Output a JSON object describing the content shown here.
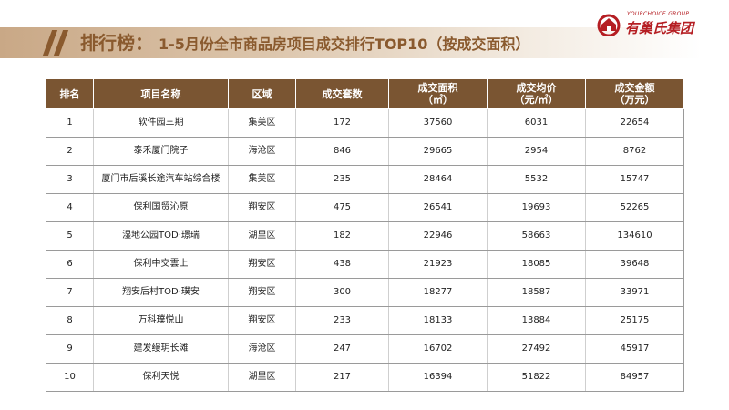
{
  "header": {
    "title": "排行榜：",
    "subtitle": "1-5月份全市商品房项目成交排行TOP10（按成交面积）"
  },
  "logo": {
    "en_text": "YOURCHOICE GROUP",
    "cn_text": "有巢氏集团",
    "brand_color": "#b51e23"
  },
  "colors": {
    "accent": "#8a5a2e",
    "header_fill": "#7a5532"
  },
  "table": {
    "columns": [
      {
        "line1": "排名",
        "line2": ""
      },
      {
        "line1": "项目名称",
        "line2": ""
      },
      {
        "line1": "区域",
        "line2": ""
      },
      {
        "line1": "成交套数",
        "line2": ""
      },
      {
        "line1": "成交面积",
        "line2": "（㎡）"
      },
      {
        "line1": "成交均价",
        "line2": "（元/㎡）"
      },
      {
        "line1": "成交金额",
        "line2": "（万元）"
      }
    ],
    "rows": [
      [
        "1",
        "软件园三期",
        "集美区",
        "172",
        "37560",
        "6031",
        "22654"
      ],
      [
        "2",
        "泰禾厦门院子",
        "海沧区",
        "846",
        "29665",
        "2954",
        "8762"
      ],
      [
        "3",
        "厦门市后溪长途汽车站综合楼",
        "集美区",
        "235",
        "28464",
        "5532",
        "15747"
      ],
      [
        "4",
        "保利国贸沁原",
        "翔安区",
        "475",
        "26541",
        "19693",
        "52265"
      ],
      [
        "5",
        "湿地公园TOD·璟瑞",
        "湖里区",
        "182",
        "22946",
        "58663",
        "134610"
      ],
      [
        "6",
        "保利中交雲上",
        "翔安区",
        "438",
        "21923",
        "18085",
        "39648"
      ],
      [
        "7",
        "翔安后村TOD·璞安",
        "翔安区",
        "300",
        "18277",
        "18587",
        "33971"
      ],
      [
        "8",
        "万科璞悦山",
        "翔安区",
        "233",
        "18133",
        "13884",
        "25175"
      ],
      [
        "9",
        "建发缦玥长滩",
        "海沧区",
        "247",
        "16702",
        "27492",
        "45917"
      ],
      [
        "10",
        "保利天悦",
        "湖里区",
        "217",
        "16394",
        "51822",
        "84957"
      ]
    ]
  }
}
